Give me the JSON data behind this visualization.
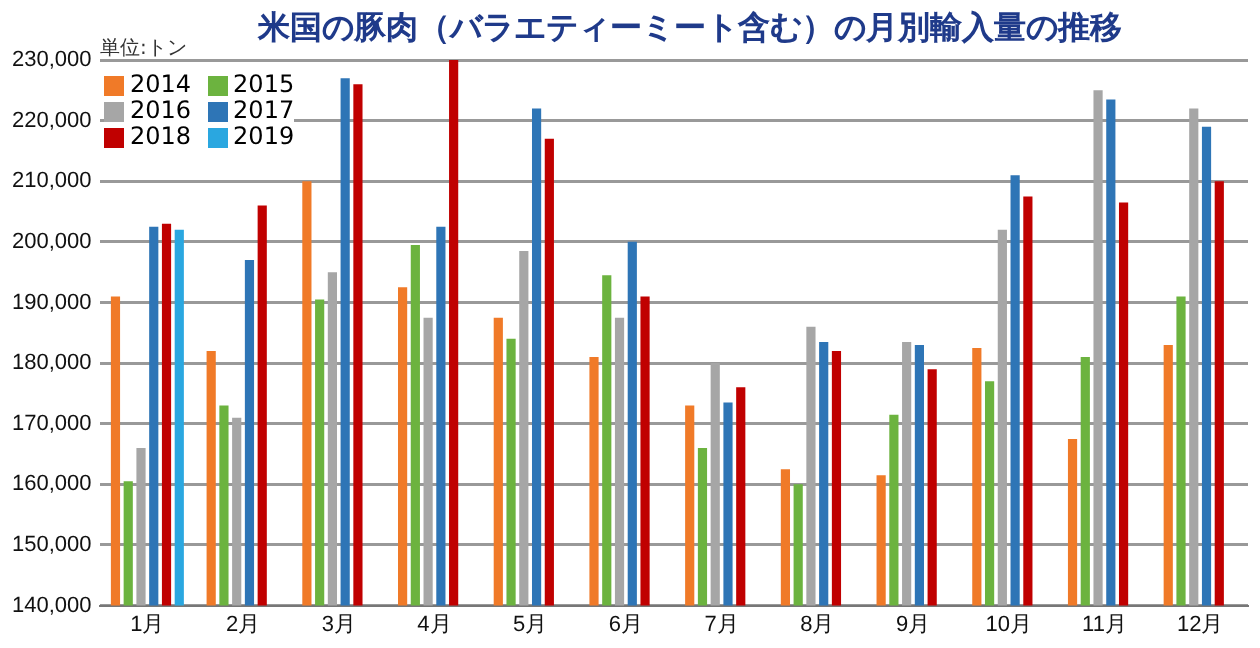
{
  "chart_data": {
    "type": "bar",
    "title": "米国の豚肉（バラエティーミート含む）の月別輸入量の推移",
    "annotations": [
      "単位:トン"
    ],
    "categories": [
      "1月",
      "2月",
      "3月",
      "4月",
      "5月",
      "6月",
      "7月",
      "8月",
      "9月",
      "10月",
      "11月",
      "12月"
    ],
    "series": [
      {
        "name": "2014",
        "color": "#f07a28",
        "values": [
          191000,
          182000,
          210000,
          192500,
          187500,
          181000,
          173000,
          162500,
          161500,
          182500,
          167500,
          183000
        ]
      },
      {
        "name": "2015",
        "color": "#6cb33f",
        "values": [
          160500,
          173000,
          190500,
          199500,
          184000,
          194500,
          166000,
          160000,
          171500,
          177000,
          181000,
          191000
        ]
      },
      {
        "name": "2016",
        "color": "#a6a6a6",
        "values": [
          166000,
          171000,
          195000,
          187500,
          198500,
          187500,
          180000,
          186000,
          183500,
          202000,
          225000,
          222000
        ]
      },
      {
        "name": "2017",
        "color": "#2e75b6",
        "values": [
          202500,
          197000,
          227000,
          202500,
          222000,
          200000,
          173500,
          183500,
          183000,
          211000,
          223500,
          219000
        ]
      },
      {
        "name": "2018",
        "color": "#c00000",
        "values": [
          203000,
          206000,
          226000,
          230000,
          217000,
          191000,
          176000,
          182000,
          179000,
          207500,
          206500,
          210000
        ]
      },
      {
        "name": "2019",
        "color": "#2aa7e0",
        "values": [
          202000,
          null,
          null,
          null,
          null,
          null,
          null,
          null,
          null,
          null,
          null,
          null
        ]
      }
    ],
    "ylim": [
      140000,
      230000
    ],
    "yticks": [
      {
        "value": 140000,
        "label": "140,000"
      },
      {
        "value": 150000,
        "label": "150,000"
      },
      {
        "value": 160000,
        "label": "160,000"
      },
      {
        "value": 170000,
        "label": "170,000"
      },
      {
        "value": 180000,
        "label": "180,000"
      },
      {
        "value": 190000,
        "label": "190,000"
      },
      {
        "value": 200000,
        "label": "200,000"
      },
      {
        "value": 210000,
        "label": "210,000"
      },
      {
        "value": 220000,
        "label": "220,000"
      },
      {
        "value": 230000,
        "label": "230,000"
      }
    ],
    "grid": "y",
    "legend": "top left"
  }
}
